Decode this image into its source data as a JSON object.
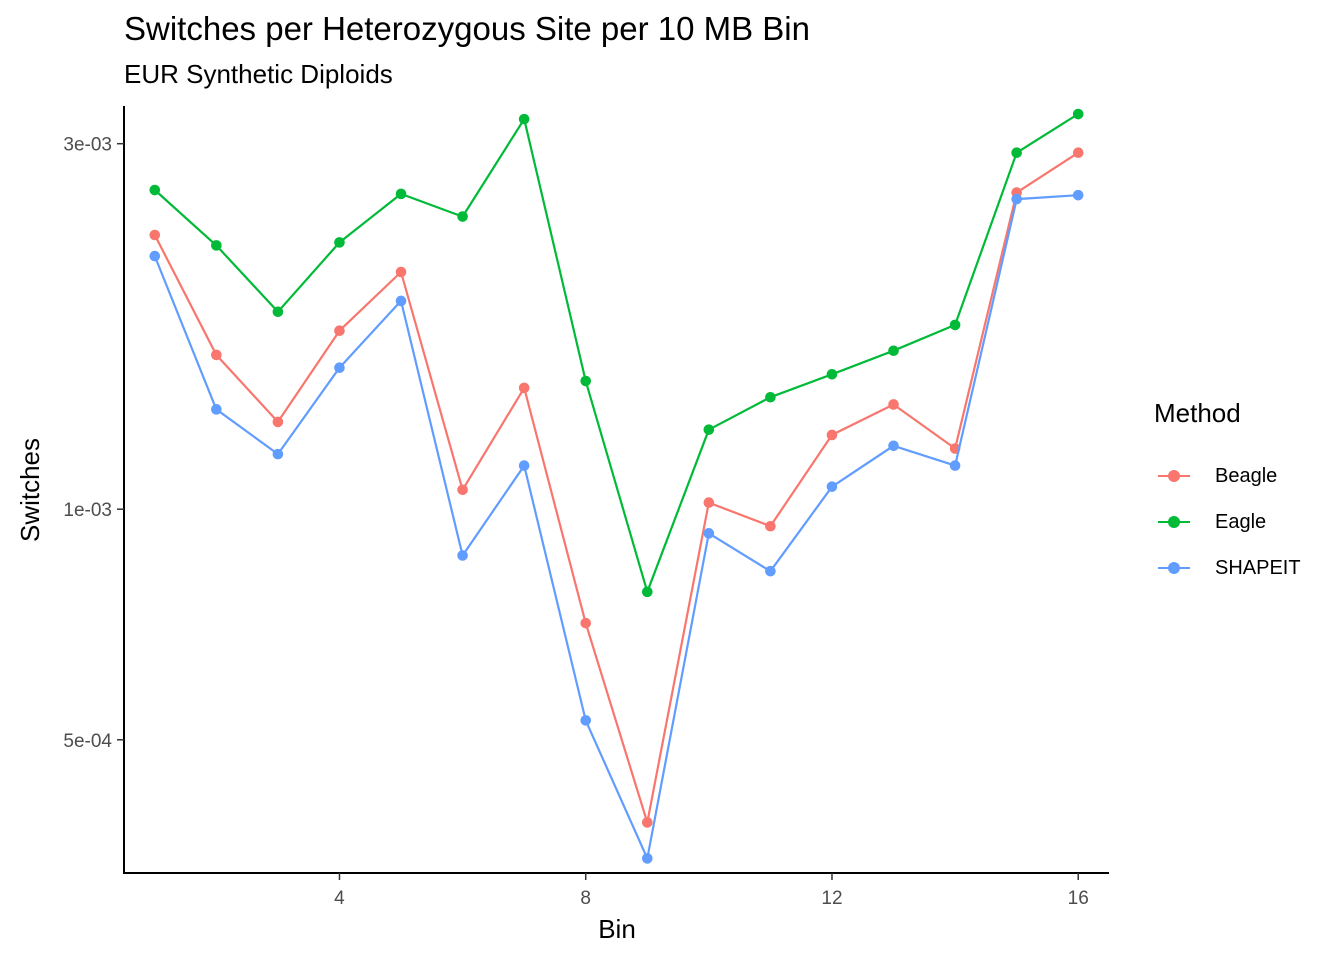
{
  "chart_data": {
    "type": "line",
    "title": "Switches per Heterozygous Site per 10 MB Bin",
    "subtitle": "EUR Synthetic Diploids",
    "xlabel": "Bin",
    "ylabel": "Switches",
    "x_scale": "linear",
    "y_scale": "log10",
    "xlim": [
      0.5,
      16.5
    ],
    "ylim": [
      0.000335,
      0.00336
    ],
    "x_ticks": [
      4,
      8,
      12,
      16
    ],
    "x_tick_labels": [
      "4",
      "8",
      "12",
      "16"
    ],
    "y_ticks": [
      0.0005,
      0.001,
      0.003
    ],
    "y_tick_labels": [
      "5e-04",
      "1e-03",
      "3e-03"
    ],
    "grid": false,
    "legend_title": "Method",
    "legend_position": "right",
    "x": [
      1,
      2,
      3,
      4,
      5,
      6,
      7,
      8,
      9,
      10,
      11,
      12,
      13,
      14,
      15,
      16
    ],
    "series": [
      {
        "name": "Beagle",
        "color": "#F8766D",
        "values": [
          0.00228,
          0.00159,
          0.0013,
          0.00171,
          0.00204,
          0.00106,
          0.00144,
          0.00071,
          0.00039,
          0.00102,
          0.00095,
          0.00125,
          0.00137,
          0.0012,
          0.00259,
          0.00292
        ]
      },
      {
        "name": "Eagle",
        "color": "#00BA38",
        "values": [
          0.00261,
          0.00221,
          0.00181,
          0.00223,
          0.00258,
          0.00241,
          0.00323,
          0.00147,
          0.00078,
          0.00127,
          0.0014,
          0.0015,
          0.00161,
          0.00174,
          0.00292,
          0.00328
        ]
      },
      {
        "name": "SHAPEIT",
        "color": "#619CFF",
        "values": [
          0.00214,
          0.00135,
          0.00118,
          0.00153,
          0.00187,
          0.00087,
          0.00114,
          0.00053,
          0.00035,
          0.00093,
          0.00083,
          0.00107,
          0.00121,
          0.00114,
          0.00254,
          0.00257
        ]
      }
    ]
  }
}
